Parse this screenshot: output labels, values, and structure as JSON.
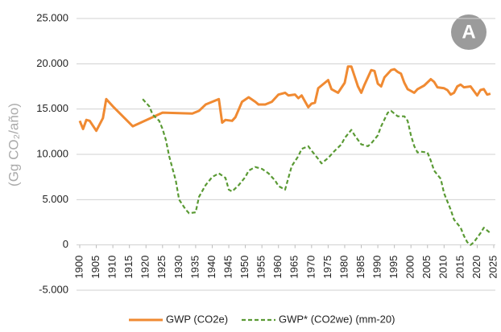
{
  "chart_data": {
    "type": "line",
    "badge": "A",
    "y_label": "(Gg CO₂/año)",
    "xlim": [
      1900,
      2025
    ],
    "xticks": [
      1900,
      1905,
      1910,
      1915,
      1920,
      1925,
      1930,
      1935,
      1940,
      1945,
      1950,
      1955,
      1960,
      1965,
      1970,
      1975,
      1980,
      1985,
      1990,
      1995,
      2000,
      2005,
      2010,
      2015,
      2020,
      2025
    ],
    "ylim": [
      -5000,
      25000
    ],
    "yticks": [
      {
        "value": -5000,
        "label": "-5.000"
      },
      0,
      {
        "value": 5000,
        "label": "5.000"
      },
      {
        "value": 10000,
        "label": "10.000"
      },
      {
        "value": 15000,
        "label": "15.000"
      },
      {
        "value": 20000,
        "label": "20.000"
      },
      {
        "value": 25000,
        "label": "25.000"
      }
    ],
    "grid": true,
    "legend": "bottom",
    "series": [
      {
        "name": "GWP (CO2e)",
        "color": "#f08a32",
        "dash": false,
        "x": [
          1900,
          1901,
          1902,
          1903,
          1905,
          1907,
          1908,
          1910,
          1916,
          1925,
          1934,
          1936,
          1938,
          1940,
          1942,
          1943,
          1944,
          1946,
          1947,
          1949,
          1951,
          1953,
          1954,
          1956,
          1958,
          1960,
          1962,
          1963,
          1965,
          1966,
          1967,
          1969,
          1970,
          1971,
          1972,
          1975,
          1976,
          1978,
          1980,
          1981,
          1982,
          1984,
          1985,
          1986,
          1988,
          1989,
          1990,
          1991,
          1992,
          1994,
          1995,
          1996,
          1997,
          1998,
          1999,
          2001,
          2002,
          2004,
          2006,
          2007,
          2008,
          2010,
          2011,
          2012,
          2013,
          2014,
          2015,
          2016,
          2018,
          2019,
          2020,
          2021,
          2022,
          2023,
          2024
        ],
        "values": [
          13700,
          12800,
          13800,
          13700,
          12600,
          14000,
          16100,
          15300,
          13100,
          14600,
          14500,
          14800,
          15500,
          15800,
          16100,
          13500,
          13800,
          13700,
          14100,
          15800,
          16300,
          15800,
          15500,
          15500,
          15800,
          16600,
          16800,
          16500,
          16600,
          16200,
          16500,
          15200,
          15600,
          15700,
          17300,
          18200,
          17200,
          16800,
          17900,
          19700,
          19700,
          17500,
          16800,
          17700,
          19300,
          19200,
          17800,
          17500,
          18500,
          19300,
          19400,
          19100,
          18900,
          17900,
          17200,
          16800,
          17200,
          17600,
          18300,
          18000,
          17400,
          17300,
          17100,
          16600,
          16800,
          17500,
          17700,
          17400,
          17500,
          17000,
          16500,
          17100,
          17200,
          16600,
          16700
        ]
      },
      {
        "name": "GWP* (CO2we) (mm-20)",
        "color": "#5a9a34",
        "dash": true,
        "x": [
          1919,
          1921,
          1922,
          1924,
          1925,
          1926,
          1927,
          1929,
          1930,
          1932,
          1933,
          1935,
          1936,
          1938,
          1940,
          1941,
          1942,
          1944,
          1945,
          1946,
          1948,
          1950,
          1951,
          1953,
          1955,
          1957,
          1959,
          1960,
          1962,
          1963,
          1964,
          1966,
          1967,
          1969,
          1970,
          1972,
          1973,
          1975,
          1977,
          1979,
          1980,
          1982,
          1983,
          1985,
          1987,
          1988,
          1990,
          1991,
          1993,
          1994,
          1996,
          1998,
          1999,
          2000,
          2001,
          2002,
          2003,
          2005,
          2006,
          2007,
          2009,
          2010,
          2012,
          2013,
          2015,
          2016,
          2017,
          2018,
          2019,
          2021,
          2022,
          2024
        ],
        "values": [
          16100,
          15300,
          14400,
          13700,
          12800,
          11600,
          9800,
          7100,
          5000,
          3900,
          3500,
          3600,
          5300,
          6600,
          7500,
          7700,
          7900,
          7400,
          6100,
          5900,
          6600,
          7500,
          8200,
          8600,
          8400,
          7900,
          7100,
          6500,
          6100,
          7400,
          8700,
          9800,
          10600,
          10900,
          10400,
          9500,
          9000,
          9600,
          10400,
          11100,
          11800,
          12700,
          12100,
          11100,
          10900,
          11200,
          12100,
          13100,
          14600,
          14800,
          14200,
          14200,
          13700,
          12100,
          10900,
          10200,
          10300,
          10200,
          9300,
          8200,
          7300,
          5700,
          3900,
          2800,
          1900,
          1000,
          300,
          0,
          300,
          1300,
          1900,
          1300
        ]
      }
    ]
  }
}
